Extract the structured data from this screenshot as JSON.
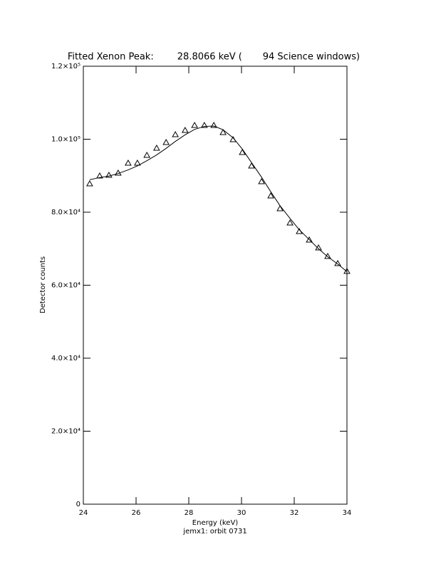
{
  "chart_data": {
    "type": "scatter",
    "title": "Fitted Xenon Peak:        28.8066 keV (       94 Science windows)",
    "x_label": "Energy (keV)",
    "subtitle": "jemx1: orbit 0731",
    "y_label": "Detector counts",
    "x": [
      24.24,
      24.62,
      24.97,
      25.32,
      25.7,
      26.05,
      26.41,
      26.78,
      27.14,
      27.49,
      27.86,
      28.22,
      28.59,
      28.95,
      29.3,
      29.68,
      30.03,
      30.38,
      30.76,
      31.11,
      31.46,
      31.84,
      32.19,
      32.57,
      32.92,
      33.27,
      33.65,
      34.0
    ],
    "series": [
      {
        "mark": "triangle",
        "color": "#000000",
        "values": [
          87800,
          89950,
          90150,
          90730,
          93460,
          93460,
          95610,
          97560,
          99120,
          101270,
          102440,
          103800,
          103800,
          103800,
          101850,
          99900,
          96390,
          92680,
          88390,
          84490,
          80980,
          77070,
          74730,
          72390,
          70240,
          67900,
          65950,
          63800
        ]
      },
      {
        "mark": "line",
        "color": "#000000",
        "values": [
          88900,
          89500,
          89900,
          90600,
          91600,
          92700,
          94100,
          95700,
          97500,
          99400,
          101200,
          102700,
          103500,
          103600,
          102600,
          100400,
          97300,
          93600,
          89600,
          85600,
          81800,
          78300,
          75200,
          72500,
          70000,
          67800,
          65800,
          63700
        ]
      }
    ],
    "xlim": [
      24,
      34
    ],
    "xticks": [
      24,
      26,
      28,
      30,
      32,
      34
    ],
    "ylim": [
      0,
      120000
    ],
    "yticks": [
      0,
      {
        "value": 20000,
        "label": "2.0×10⁴"
      },
      {
        "value": 40000,
        "label": "4.0×10⁴"
      },
      {
        "value": 60000,
        "label": "6.0×10⁴"
      },
      {
        "value": 80000,
        "label": "8.0×10⁴"
      },
      {
        "value": 100000,
        "label": "1.0×10⁵"
      },
      {
        "value": 120000,
        "label": "1.2×10⁵"
      }
    ]
  }
}
